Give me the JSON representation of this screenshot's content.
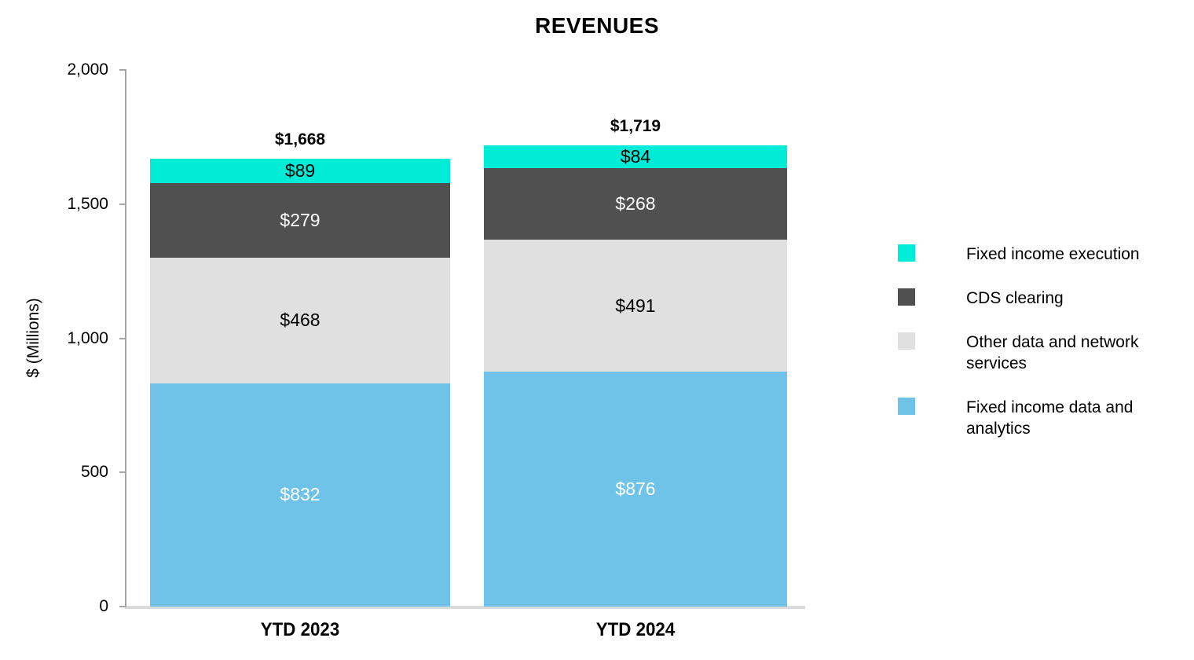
{
  "title": "REVENUES",
  "y_axis": {
    "label": "$ (Millions)",
    "ticks": [
      {
        "label": "2,000",
        "value": 2000
      },
      {
        "label": "1,500",
        "value": 1500
      },
      {
        "label": "1,000",
        "value": 1000
      },
      {
        "label": "500",
        "value": 500
      },
      {
        "label": "0",
        "value": 0
      }
    ]
  },
  "chart_data": {
    "type": "bar",
    "stacked": true,
    "title": "REVENUES",
    "ylabel": "$ (Millions)",
    "ylim": [
      0,
      2000
    ],
    "grid": false,
    "legend_position": "right",
    "categories": [
      "YTD 2023",
      "YTD 2024"
    ],
    "series": [
      {
        "name": "Fixed income data and analytics",
        "color": "#6FC3E9",
        "text_color": "#FFFFFF",
        "values": [
          832,
          876
        ],
        "data_labels": [
          "$832",
          "$876"
        ]
      },
      {
        "name": "Other data and network services",
        "color": "#E0E0E0",
        "text_color": "#000000",
        "values": [
          468,
          491
        ],
        "data_labels": [
          "$468",
          "$491"
        ]
      },
      {
        "name": "CDS clearing",
        "color": "#505050",
        "text_color": "#FFFFFF",
        "values": [
          279,
          268
        ],
        "data_labels": [
          "$279",
          "$268"
        ]
      },
      {
        "name": "Fixed income execution",
        "color": "#00ECD7",
        "text_color": "#000000",
        "values": [
          89,
          84
        ],
        "data_labels": [
          "$89",
          "$84"
        ]
      }
    ],
    "totals": [
      {
        "label": "$1,668",
        "value": 1668
      },
      {
        "label": "$1,719",
        "value": 1719
      }
    ]
  },
  "legend": {
    "items": [
      {
        "label": "Fixed income execution",
        "color": "#00ECD7"
      },
      {
        "label": "CDS clearing",
        "color": "#505050"
      },
      {
        "label": "Other data and network services",
        "color": "#E0E0E0"
      },
      {
        "label": "Fixed income data and analytics",
        "color": "#6FC3E9"
      }
    ]
  }
}
